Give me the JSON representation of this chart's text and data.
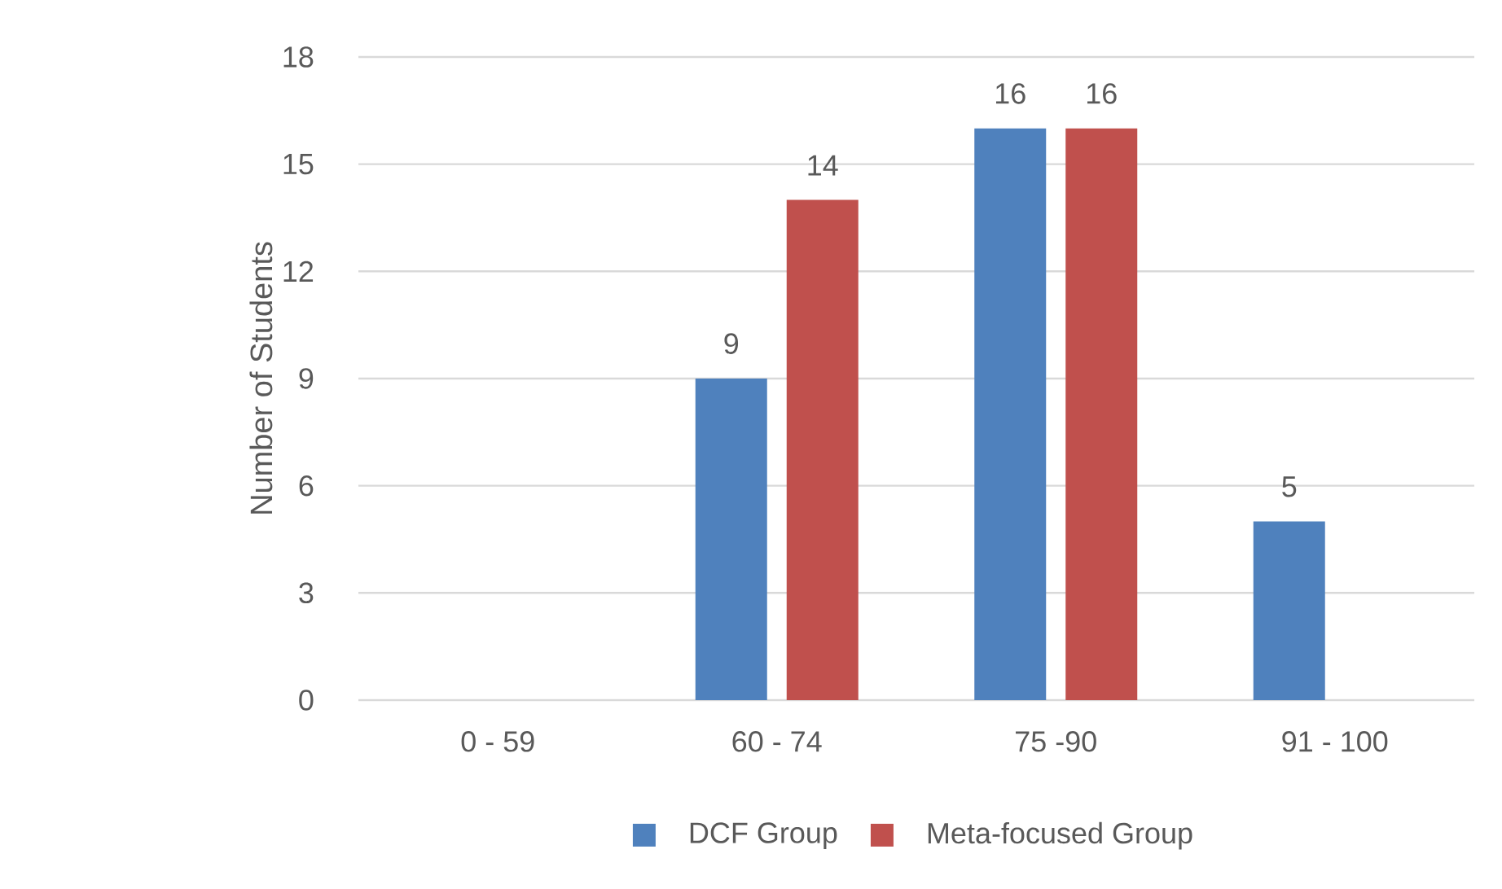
{
  "chart_data": {
    "type": "bar",
    "ylabel": "Number of Students",
    "categories": [
      "0 - 59",
      "60 - 74",
      "75 -90",
      "91 - 100"
    ],
    "series": [
      {
        "name": "DCF Group",
        "color": "#4f81bd",
        "values": [
          0,
          9,
          16,
          5
        ],
        "value_labels": [
          null,
          "9",
          "16",
          "5"
        ]
      },
      {
        "name": "Meta-focused Group",
        "color": "#c0504d",
        "values": [
          0,
          14,
          16,
          0
        ],
        "value_labels": [
          null,
          "14",
          "16",
          null
        ]
      }
    ],
    "ylim": [
      0,
      18
    ],
    "yticks": [
      0,
      3,
      6,
      9,
      12,
      15,
      18
    ],
    "grid": "y",
    "legend": "bottom"
  }
}
